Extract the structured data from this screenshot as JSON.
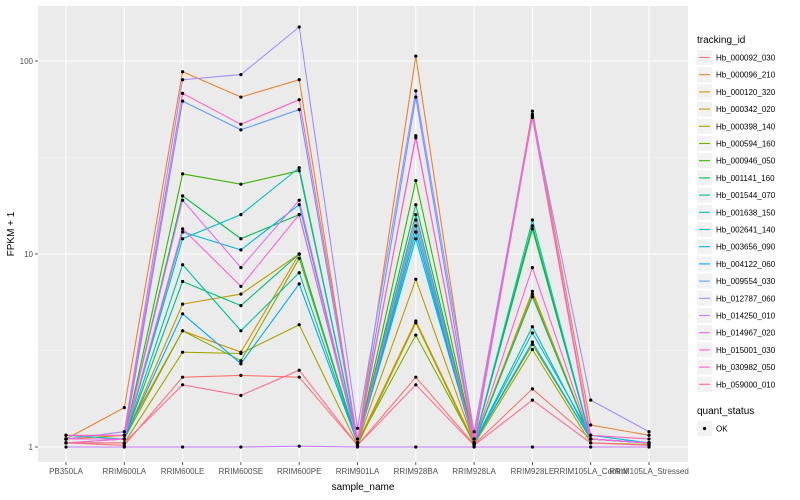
{
  "chart_data": {
    "type": "line",
    "xlabel": "sample_name",
    "ylabel": "FPKM + 1",
    "y_scale": "log10",
    "ylim": [
      0.9,
      170
    ],
    "yticks": [
      1,
      10,
      100
    ],
    "ytick_labels": [
      "1",
      "10",
      "100"
    ],
    "grid": true,
    "legend_placement": "right",
    "categories": [
      "PB350LA",
      "RRIM600LA",
      "RRIM600LE",
      "RRIM600SE",
      "RRIM600PE",
      "RRIM901LA",
      "RRIM928BA",
      "RRIM928LA",
      "RRIM928LE",
      "RRIM105LA_Control",
      "RRIM105LA_Stressed"
    ],
    "category_labels": [
      "PB350LA",
      "RRIM600LA",
      "RRIM600LE",
      "RRIM600SE",
      "RRIM600PE",
      "RRIM901LA",
      "RRIM928BA",
      "RRIM928LA",
      "RRIM928LE",
      "RRIM105LA_Control",
      "RRIM105LA_Stressed"
    ],
    "legend_title": "tracking_id",
    "series": [
      {
        "name": "Hb_000092_030",
        "color": "#F8766D",
        "values": [
          1.05,
          1.02,
          2.3,
          2.35,
          2.3,
          1.02,
          2.3,
          1.03,
          2.0,
          1.1,
          1.05
        ]
      },
      {
        "name": "Hb_000096_210",
        "color": "#EA8331",
        "values": [
          1.1,
          1.6,
          88,
          65,
          80,
          1.05,
          106,
          1.1,
          55,
          1.3,
          1.15
        ]
      },
      {
        "name": "Hb_000120_320",
        "color": "#D89000",
        "values": [
          1.1,
          1.15,
          4.0,
          3.1,
          10,
          1.05,
          4.5,
          1.05,
          6.2,
          1.1,
          1.05
        ]
      },
      {
        "name": "Hb_000342_020",
        "color": "#C09B00",
        "values": [
          1.05,
          1.1,
          5.5,
          6.2,
          10,
          1.05,
          7.4,
          1.05,
          6.4,
          1.1,
          1.05
        ]
      },
      {
        "name": "Hb_000398_140",
        "color": "#A3A500",
        "values": [
          1.05,
          1.05,
          3.1,
          3.05,
          4.3,
          1.02,
          4.4,
          1.03,
          3.2,
          1.05,
          1.03
        ]
      },
      {
        "name": "Hb_000594_160",
        "color": "#7CAE00",
        "values": [
          1.1,
          1.1,
          4.0,
          2.8,
          9.5,
          1.05,
          3.8,
          1.05,
          3.4,
          1.1,
          1.05
        ]
      },
      {
        "name": "Hb_000946_050",
        "color": "#39B600",
        "values": [
          1.1,
          1.1,
          26,
          23,
          27,
          1.05,
          24,
          1.05,
          14,
          1.1,
          1.05
        ]
      },
      {
        "name": "Hb_001141_160",
        "color": "#00BB4E",
        "values": [
          1.1,
          1.1,
          20,
          12,
          16,
          1.05,
          18,
          1.05,
          13.5,
          1.1,
          1.05
        ]
      },
      {
        "name": "Hb_001544_070",
        "color": "#00BF7D",
        "values": [
          1.1,
          1.1,
          7.2,
          5.4,
          10,
          1.05,
          13,
          1.05,
          6.0,
          1.1,
          1.05
        ]
      },
      {
        "name": "Hb_001638_150",
        "color": "#00C1A3",
        "values": [
          1.1,
          1.1,
          8.8,
          4.0,
          8.0,
          1.05,
          16,
          1.05,
          4.2,
          1.1,
          1.05
        ]
      },
      {
        "name": "Hb_002641_140",
        "color": "#00BFC4",
        "values": [
          1.15,
          1.1,
          12,
          16,
          28,
          1.05,
          14,
          1.05,
          15,
          1.1,
          1.05
        ]
      },
      {
        "name": "Hb_003656_090",
        "color": "#00B8E5",
        "values": [
          1.1,
          1.1,
          13,
          10.5,
          18,
          1.05,
          13,
          1.05,
          3.9,
          1.15,
          1.05
        ]
      },
      {
        "name": "Hb_004122_060",
        "color": "#00ABFD",
        "values": [
          1.1,
          1.1,
          4.9,
          2.7,
          7.0,
          1.05,
          12,
          1.05,
          3.5,
          1.1,
          1.05
        ]
      },
      {
        "name": "Hb_009554_030",
        "color": "#619CFF",
        "values": [
          1.1,
          1.1,
          62,
          44,
          56,
          1.05,
          65,
          1.05,
          52,
          1.1,
          1.05
        ]
      },
      {
        "name": "Hb_012787_060",
        "color": "#A58AFF",
        "values": [
          1.1,
          1.2,
          80,
          85,
          150,
          1.25,
          70,
          1.2,
          53,
          1.75,
          1.2
        ]
      },
      {
        "name": "Hb_014250_010",
        "color": "#C77CFF",
        "values": [
          1.0,
          1.0,
          1.0,
          1.0,
          1.01,
          1.0,
          1.0,
          1.0,
          1.0,
          1.0,
          1.0
        ]
      },
      {
        "name": "Hb_014967_020",
        "color": "#E76BF3",
        "values": [
          1.05,
          1.1,
          19,
          8.5,
          19,
          1.05,
          41,
          1.05,
          51,
          1.1,
          1.05
        ]
      },
      {
        "name": "Hb_015001_030",
        "color": "#FA62DB",
        "values": [
          1.1,
          1.1,
          13.5,
          6.8,
          16,
          1.05,
          15,
          1.05,
          8.5,
          1.1,
          1.05
        ]
      },
      {
        "name": "Hb_030982_050",
        "color": "#FF62BC",
        "values": [
          1.15,
          1.15,
          68,
          47,
          63,
          1.1,
          40,
          1.1,
          52,
          1.15,
          1.1
        ]
      },
      {
        "name": "Hb_059000_010",
        "color": "#FF6C91",
        "values": [
          1.05,
          1.05,
          2.1,
          1.85,
          2.5,
          1.02,
          2.1,
          1.02,
          1.75,
          1.05,
          1.02
        ]
      }
    ],
    "shape_legend_title": "quant_status",
    "shape_legend_items": [
      {
        "label": "OK",
        "color": "#000000"
      }
    ]
  }
}
